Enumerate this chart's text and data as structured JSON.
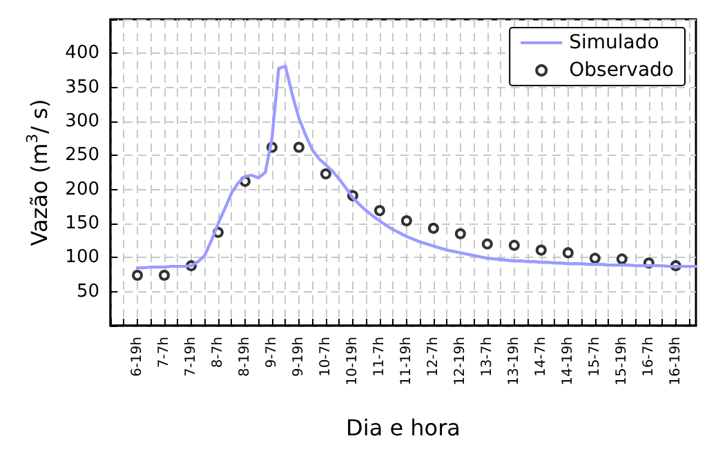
{
  "chart_data": {
    "type": "line",
    "xlabel": "Dia e hora",
    "ylabel": "Vazão (m$^{3}$/ s)",
    "categories": [
      null,
      null,
      null,
      null,
      "6-19h",
      null,
      null,
      null,
      "7-7h",
      null,
      null,
      null,
      "7-19h",
      null,
      null,
      null,
      "8-7h",
      null,
      null,
      null,
      "8-19h",
      null,
      null,
      null,
      "9-7h",
      null,
      null,
      null,
      "9-19h",
      null,
      null,
      null,
      "10-7h",
      null,
      null,
      null,
      "10-19h",
      null,
      null,
      null,
      "11-7h",
      null,
      null,
      null,
      "11-19h",
      null,
      null,
      null,
      "12-7h",
      null,
      null,
      null,
      "12-19h",
      null,
      null,
      null,
      "13-7h",
      null,
      null,
      null,
      "13-19h",
      null,
      null,
      null,
      "14-7h",
      null,
      null,
      null,
      "14-19h",
      null,
      null,
      null,
      "15-7h",
      null,
      null,
      null,
      "15-19h",
      null,
      null,
      null,
      "16-7h",
      null,
      null,
      null,
      "16-19h",
      null,
      null,
      null
    ],
    "ylim": [
      0,
      450
    ],
    "yticks": [
      {
        "value": 0,
        "label": null
      },
      50,
      100,
      150,
      200,
      250,
      300,
      350,
      400,
      {
        "value": 450,
        "label": null
      }
    ],
    "grid": true,
    "legend": "top right",
    "line_style": "solid",
    "series": [
      {
        "name": "Simulado",
        "color": "#9b9bff",
        "marker": "none",
        "values": [
          null,
          null,
          null,
          null,
          85,
          85,
          86,
          86,
          86,
          87,
          87,
          87,
          88,
          94,
          103,
          125,
          150,
          172,
          195,
          210,
          219,
          221,
          217,
          225,
          275,
          378,
          381,
          340,
          305,
          280,
          258,
          245,
          236,
          227,
          215,
          202,
          188,
          178,
          169,
          161,
          154,
          147,
          141,
          136,
          131,
          127,
          123,
          120,
          117,
          114,
          111,
          109,
          107,
          105,
          103,
          101,
          99,
          98,
          97,
          96,
          95,
          95,
          94,
          94,
          93,
          93,
          92,
          92,
          91,
          91,
          91,
          90,
          90,
          90,
          89,
          89,
          89,
          89,
          88,
          88,
          88,
          88,
          88,
          87,
          87,
          87,
          87,
          87
        ]
      },
      {
        "name": "Observado",
        "type": "scatter",
        "color": "#000000",
        "marker": "circle",
        "values": [
          null,
          null,
          null,
          null,
          74,
          null,
          null,
          null,
          74,
          null,
          null,
          null,
          88,
          null,
          null,
          null,
          137,
          null,
          null,
          null,
          212,
          null,
          null,
          null,
          262,
          null,
          null,
          null,
          262,
          null,
          null,
          null,
          223,
          null,
          null,
          null,
          191,
          null,
          null,
          null,
          169,
          null,
          null,
          null,
          154,
          null,
          null,
          null,
          143,
          null,
          null,
          null,
          135,
          null,
          null,
          null,
          120,
          null,
          null,
          null,
          118,
          null,
          null,
          null,
          111,
          null,
          null,
          null,
          107,
          null,
          null,
          null,
          99,
          null,
          null,
          null,
          98,
          null,
          null,
          null,
          92,
          null,
          null,
          null,
          88,
          null,
          null,
          null
        ]
      }
    ]
  }
}
